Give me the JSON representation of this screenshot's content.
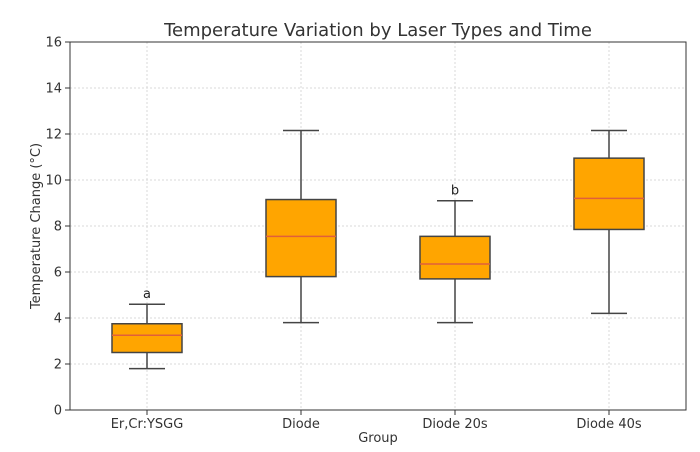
{
  "chart_data": {
    "type": "box",
    "title": "Temperature Variation by Laser Types and Time",
    "xlabel": "Group",
    "ylabel": "Temperature Change (°C)",
    "ylim": [
      0,
      16
    ],
    "yticks": [
      0,
      2,
      4,
      6,
      8,
      10,
      12,
      14,
      16
    ],
    "grid": true,
    "box_color": "#FFA500",
    "median_color": "#E0603A",
    "categories": [
      "Er,Cr:YSGG",
      "Diode",
      "Diode 20s",
      "Diode 40s"
    ],
    "boxes": [
      {
        "min": 1.8,
        "q1": 2.5,
        "median": 3.25,
        "q3": 3.75,
        "max": 4.6,
        "annotation": "a"
      },
      {
        "min": 3.8,
        "q1": 5.8,
        "median": 7.55,
        "q3": 9.15,
        "max": 12.15,
        "annotation": ""
      },
      {
        "min": 3.8,
        "q1": 5.7,
        "median": 6.35,
        "q3": 7.55,
        "max": 9.1,
        "annotation": "b"
      },
      {
        "min": 4.2,
        "q1": 7.85,
        "median": 9.2,
        "q3": 10.95,
        "max": 12.15,
        "annotation": ""
      }
    ]
  }
}
